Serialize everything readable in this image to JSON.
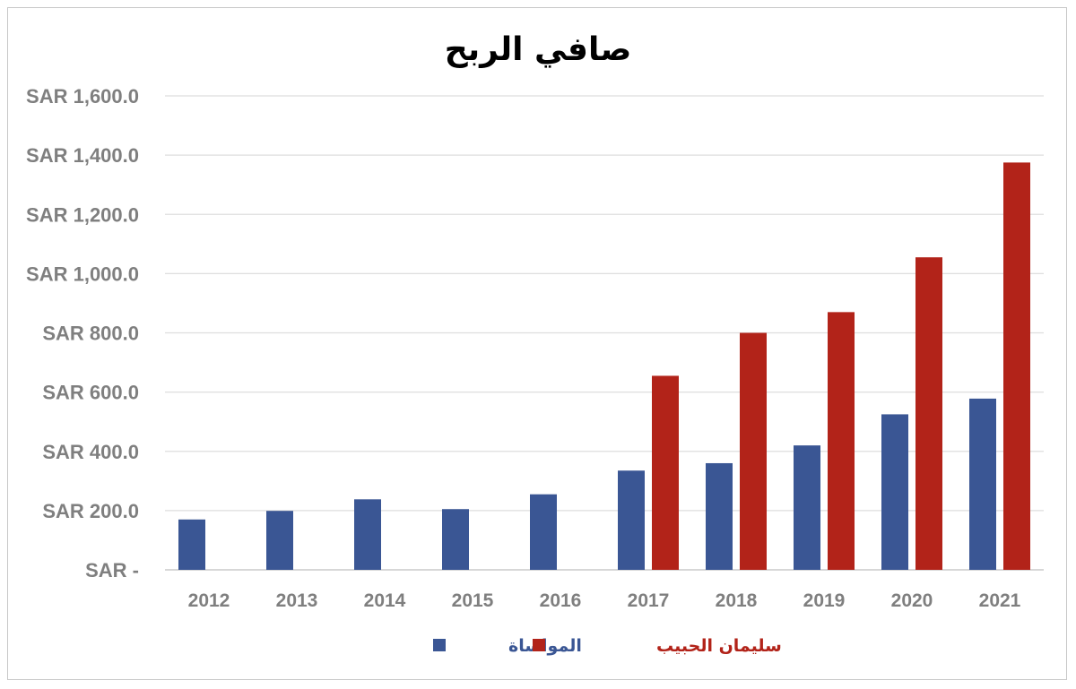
{
  "chart_data": {
    "type": "bar",
    "title": "صافي الربح",
    "xlabel": "",
    "ylabel": "",
    "categories": [
      "2012",
      "2013",
      "2014",
      "2015",
      "2016",
      "2017",
      "2018",
      "2019",
      "2020",
      "2021"
    ],
    "series": [
      {
        "name": "المواساة",
        "color": "#3a5694",
        "values": [
          170,
          199,
          238,
          205,
          255,
          335,
          360,
          420,
          525,
          578
        ]
      },
      {
        "name": "سليمان الحبيب",
        "color": "#b22319",
        "values": [
          null,
          null,
          null,
          null,
          null,
          655,
          800,
          870,
          1055,
          1375
        ]
      }
    ],
    "ylim": [
      0,
      1600
    ],
    "yticks": [
      0,
      200,
      400,
      600,
      800,
      1000,
      1200,
      1400,
      1600
    ],
    "ytick_labels": [
      "SAR -",
      "SAR 200.0",
      "SAR 400.0",
      "SAR 600.0",
      "SAR 800.0",
      "SAR 1,000.0",
      "SAR 1,200.0",
      "SAR 1,400.0",
      "SAR 1,600.0"
    ],
    "grid": true,
    "legend_position": "bottom"
  }
}
